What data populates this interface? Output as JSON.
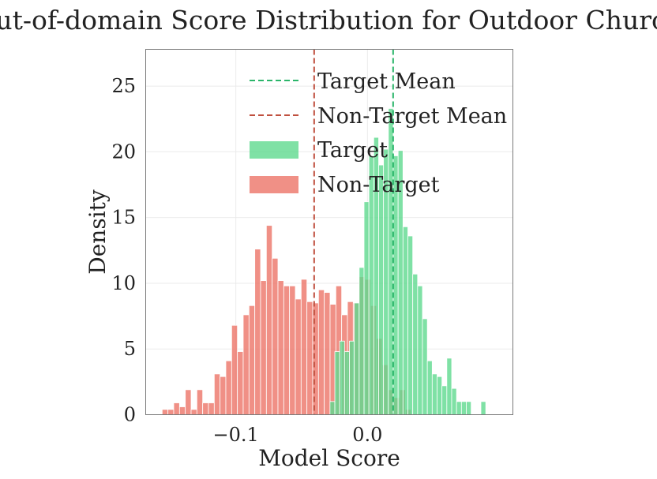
{
  "chart_data": {
    "type": "histogram",
    "title": "Out-of-domain Score Distribution for Outdoor Church",
    "xlabel": "Model Score",
    "ylabel": "Density",
    "xlim": [
      -0.1685,
      0.1105
    ],
    "ylim": [
      0,
      27.8
    ],
    "xticks": [
      -0.1,
      0.0
    ],
    "xtick_labels": [
      "−0.1",
      "0.0"
    ],
    "yticks": [
      0,
      5,
      10,
      15,
      20,
      25
    ],
    "ytick_labels": [
      "0",
      "5",
      "10",
      "15",
      "20",
      "25"
    ],
    "grid": true,
    "legend_position": "top-center",
    "colors": {
      "target": "#5fd98f",
      "non_target": "#ec7468",
      "target_mean": "#2bb56a",
      "non_target_mean": "#c0503f"
    },
    "legend": {
      "target_mean": "Target Mean",
      "non_target_mean": "Non-Target Mean",
      "target": "Target",
      "non_target": "Non-Target"
    },
    "target_mean": 0.0195,
    "non_target_mean": -0.0405,
    "series": [
      {
        "key": "target",
        "bin_width": 0.0037,
        "bins": [
          {
            "x0": -0.0285,
            "y": 1.0
          },
          {
            "x0": -0.0248,
            "y": 4.8
          },
          {
            "x0": -0.0211,
            "y": 5.6
          },
          {
            "x0": -0.0174,
            "y": 4.8
          },
          {
            "x0": -0.0137,
            "y": 5.6
          },
          {
            "x0": -0.01,
            "y": 8.5
          },
          {
            "x0": -0.0063,
            "y": 11.2
          },
          {
            "x0": -0.0026,
            "y": 16.2
          },
          {
            "x0": 0.0011,
            "y": 19.7
          },
          {
            "x0": 0.0048,
            "y": 21.1
          },
          {
            "x0": 0.0085,
            "y": 19.0
          },
          {
            "x0": 0.0122,
            "y": 20.2
          },
          {
            "x0": 0.0159,
            "y": 23.3
          },
          {
            "x0": 0.0196,
            "y": 19.7
          },
          {
            "x0": 0.0233,
            "y": 20.1
          },
          {
            "x0": 0.027,
            "y": 14.3
          },
          {
            "x0": 0.0307,
            "y": 13.6
          },
          {
            "x0": 0.0344,
            "y": 10.7
          },
          {
            "x0": 0.0381,
            "y": 9.8
          },
          {
            "x0": 0.0418,
            "y": 7.3
          },
          {
            "x0": 0.0455,
            "y": 4.1
          },
          {
            "x0": 0.0492,
            "y": 3.1
          },
          {
            "x0": 0.0529,
            "y": 2.9
          },
          {
            "x0": 0.0566,
            "y": 2.2
          },
          {
            "x0": 0.0603,
            "y": 4.3
          },
          {
            "x0": 0.064,
            "y": 2.0
          },
          {
            "x0": 0.0677,
            "y": 1.0
          },
          {
            "x0": 0.0714,
            "y": 1.0
          },
          {
            "x0": 0.0751,
            "y": 1.0
          },
          {
            "x0": 0.0862,
            "y": 1.0
          }
        ]
      },
      {
        "key": "non_target",
        "bin_width": 0.0044,
        "bins": [
          {
            "x0": -0.156,
            "y": 0.4
          },
          {
            "x0": -0.1516,
            "y": 0.4
          },
          {
            "x0": -0.1472,
            "y": 0.9
          },
          {
            "x0": -0.1428,
            "y": 0.6
          },
          {
            "x0": -0.1384,
            "y": 1.9
          },
          {
            "x0": -0.134,
            "y": 0.4
          },
          {
            "x0": -0.1296,
            "y": 1.9
          },
          {
            "x0": -0.1252,
            "y": 0.9
          },
          {
            "x0": -0.1208,
            "y": 0.9
          },
          {
            "x0": -0.1164,
            "y": 3.1
          },
          {
            "x0": -0.112,
            "y": 2.9
          },
          {
            "x0": -0.1076,
            "y": 4.1
          },
          {
            "x0": -0.1032,
            "y": 6.8
          },
          {
            "x0": -0.0988,
            "y": 4.8
          },
          {
            "x0": -0.0944,
            "y": 7.6
          },
          {
            "x0": -0.09,
            "y": 8.3
          },
          {
            "x0": -0.0856,
            "y": 12.6
          },
          {
            "x0": -0.0812,
            "y": 10.2
          },
          {
            "x0": -0.0768,
            "y": 14.4
          },
          {
            "x0": -0.0724,
            "y": 11.9
          },
          {
            "x0": -0.068,
            "y": 10.2
          },
          {
            "x0": -0.0636,
            "y": 9.8
          },
          {
            "x0": -0.0592,
            "y": 9.8
          },
          {
            "x0": -0.0548,
            "y": 8.8
          },
          {
            "x0": -0.0504,
            "y": 10.3
          },
          {
            "x0": -0.046,
            "y": 8.6
          },
          {
            "x0": -0.0416,
            "y": 8.5
          },
          {
            "x0": -0.0372,
            "y": 9.5
          },
          {
            "x0": -0.0328,
            "y": 9.3
          },
          {
            "x0": -0.0284,
            "y": 8.4
          },
          {
            "x0": -0.024,
            "y": 9.8
          },
          {
            "x0": -0.0196,
            "y": 7.6
          },
          {
            "x0": -0.0152,
            "y": 8.6
          },
          {
            "x0": -0.0108,
            "y": 8.5
          },
          {
            "x0": -0.0064,
            "y": 10.5
          },
          {
            "x0": -0.002,
            "y": 10.3
          },
          {
            "x0": 0.0024,
            "y": 8.3
          },
          {
            "x0": 0.0068,
            "y": 5.8
          },
          {
            "x0": 0.0112,
            "y": 3.8
          },
          {
            "x0": 0.0156,
            "y": 1.9
          },
          {
            "x0": 0.02,
            "y": 1.3
          },
          {
            "x0": 0.0244,
            "y": 1.9
          },
          {
            "x0": 0.0288,
            "y": 0.4
          }
        ]
      }
    ]
  }
}
